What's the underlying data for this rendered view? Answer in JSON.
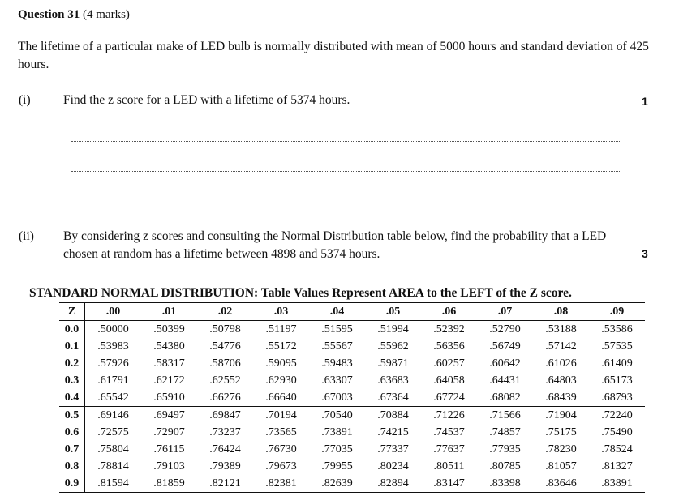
{
  "question": {
    "number_label": "Question 31",
    "marks_label": "(4 marks)",
    "intro": "The lifetime of a particular make of LED bulb is normally distributed with mean of 5000 hours and standard deviation of 425 hours."
  },
  "part_i": {
    "label": "(i)",
    "text": "Find the z score for a LED with a lifetime of 5374 hours.",
    "marks": "1"
  },
  "part_ii": {
    "label": "(ii)",
    "text": "By considering z scores and consulting the Normal Distribution table below, find the probability that a LED chosen at random has a lifetime between 4898 and 5374 hours.",
    "marks": "3"
  },
  "table": {
    "title": "STANDARD NORMAL DISTRIBUTION: Table Values Represent AREA to the LEFT of the Z score.",
    "headers": [
      "Z",
      ".00",
      ".01",
      ".02",
      ".03",
      ".04",
      ".05",
      ".06",
      ".07",
      ".08",
      ".09"
    ],
    "rows": [
      [
        "0.0",
        ".50000",
        ".50399",
        ".50798",
        ".51197",
        ".51595",
        ".51994",
        ".52392",
        ".52790",
        ".53188",
        ".53586"
      ],
      [
        "0.1",
        ".53983",
        ".54380",
        ".54776",
        ".55172",
        ".55567",
        ".55962",
        ".56356",
        ".56749",
        ".57142",
        ".57535"
      ],
      [
        "0.2",
        ".57926",
        ".58317",
        ".58706",
        ".59095",
        ".59483",
        ".59871",
        ".60257",
        ".60642",
        ".61026",
        ".61409"
      ],
      [
        "0.3",
        ".61791",
        ".62172",
        ".62552",
        ".62930",
        ".63307",
        ".63683",
        ".64058",
        ".64431",
        ".64803",
        ".65173"
      ],
      [
        "0.4",
        ".65542",
        ".65910",
        ".66276",
        ".66640",
        ".67003",
        ".67364",
        ".67724",
        ".68082",
        ".68439",
        ".68793"
      ],
      [
        "0.5",
        ".69146",
        ".69497",
        ".69847",
        ".70194",
        ".70540",
        ".70884",
        ".71226",
        ".71566",
        ".71904",
        ".72240"
      ],
      [
        "0.6",
        ".72575",
        ".72907",
        ".73237",
        ".73565",
        ".73891",
        ".74215",
        ".74537",
        ".74857",
        ".75175",
        ".75490"
      ],
      [
        "0.7",
        ".75804",
        ".76115",
        ".76424",
        ".76730",
        ".77035",
        ".77337",
        ".77637",
        ".77935",
        ".78230",
        ".78524"
      ],
      [
        "0.8",
        ".78814",
        ".79103",
        ".79389",
        ".79673",
        ".79955",
        ".80234",
        ".80511",
        ".80785",
        ".81057",
        ".81327"
      ],
      [
        "0.9",
        ".81594",
        ".81859",
        ".82121",
        ".82381",
        ".82639",
        ".82894",
        ".83147",
        ".83398",
        ".83646",
        ".83891"
      ]
    ]
  }
}
